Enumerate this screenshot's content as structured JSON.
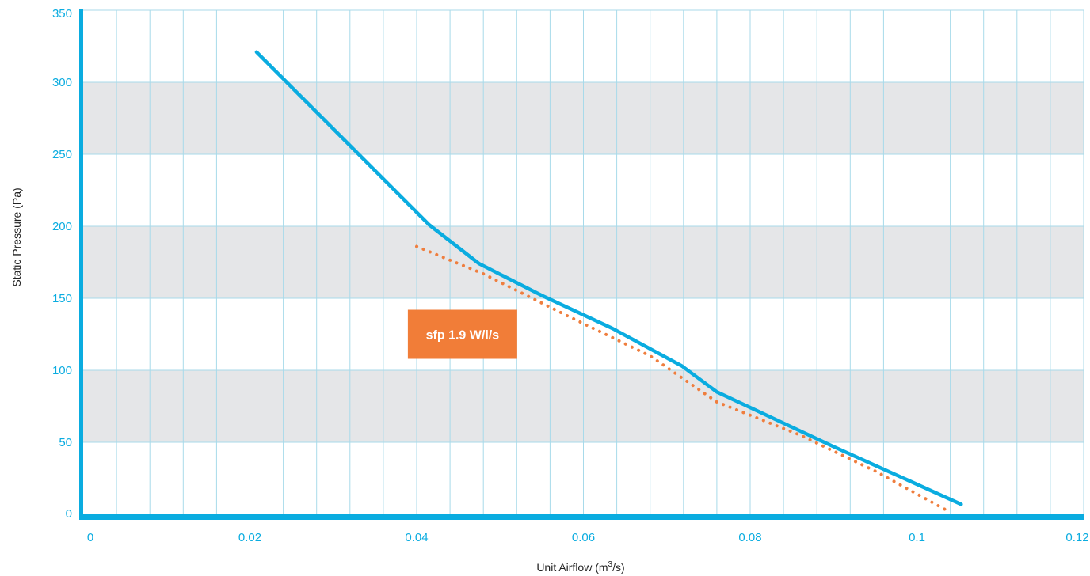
{
  "chart_data": {
    "type": "line",
    "xlabel": "Unit Airflow (m",
    "xlabel_sup": "3",
    "xlabel_suffix": "/s)",
    "ylabel": "Static Pressure (Pa)",
    "xlim": [
      0,
      0.12
    ],
    "ylim": [
      0,
      350
    ],
    "x_ticks": [
      0,
      0.02,
      0.04,
      0.06,
      0.08,
      0.1,
      0.12
    ],
    "x_tick_labels": [
      "0",
      "0.02",
      "0.04",
      "0.06",
      "0.08",
      "0.1",
      "0.12"
    ],
    "y_ticks": [
      0,
      50,
      100,
      150,
      200,
      250,
      300,
      350
    ],
    "y_tick_labels": [
      "0",
      "50",
      "100",
      "150",
      "200",
      "250",
      "300",
      "350"
    ],
    "minor_x_step": 0.004,
    "grid": true,
    "series": [
      {
        "style": "solid",
        "color": "#0aace0",
        "x": [
          0.0208,
          0.0415,
          0.0475,
          0.055,
          0.0635,
          0.0718,
          0.076,
          0.09,
          0.1053
        ],
        "y": [
          321,
          201,
          174,
          152,
          129,
          103,
          85,
          47,
          7
        ]
      },
      {
        "style": "dotted",
        "color": "#ef7e3e",
        "x": [
          0.04,
          0.048,
          0.058,
          0.068,
          0.076,
          0.086,
          0.095,
          0.1035
        ],
        "y": [
          186,
          167,
          138,
          110,
          78,
          55,
          30,
          3
        ]
      }
    ],
    "annotation": {
      "text": "sfp 1.9 W/l/s",
      "background": "#f17d38",
      "x": 0.0455,
      "y": 125
    },
    "colors": {
      "axis": "#0aace0",
      "grid": "#a8daea",
      "band": "#e5e6e8",
      "tick_text": "#0aace0"
    }
  }
}
